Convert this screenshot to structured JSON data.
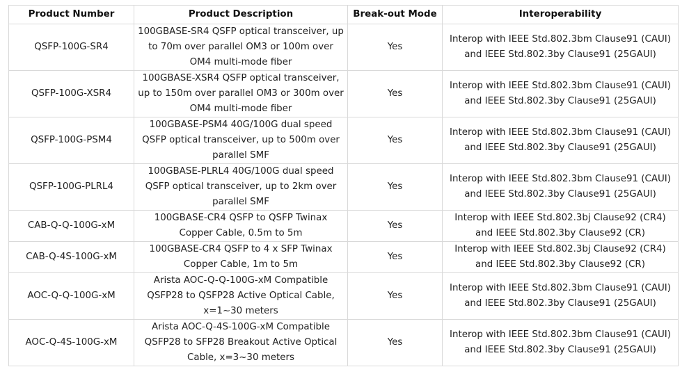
{
  "headers": [
    "Product Number",
    "Product Description",
    "Break-out Mode",
    "Interoperability"
  ],
  "rows": [
    {
      "number": "QSFP-100G-SR4",
      "description": "100GBASE-SR4 QSFP optical transceiver, up to 70m over parallel OM3 or 100m over OM4 multi-mode fiber",
      "breakout": "Yes",
      "interop": "Interop with IEEE Std.802.3bm Clause91 (CAUI) and IEEE Std.802.3by Clause91 (25GAUI)"
    },
    {
      "number": "QSFP-100G-XSR4",
      "description": "100GBASE-XSR4 QSFP optical transceiver, up to 150m over parallel OM3 or 300m over OM4 multi-mode fiber",
      "breakout": "Yes",
      "interop": "Interop with IEEE Std.802.3bm Clause91 (CAUI) and IEEE Std.802.3by Clause91 (25GAUI)"
    },
    {
      "number": "QSFP-100G-PSM4",
      "description": "100GBASE-PSM4 40G/100G dual speed QSFP optical transceiver, up to 500m over parallel SMF",
      "breakout": "Yes",
      "interop": "Interop with IEEE Std.802.3bm Clause91 (CAUI) and IEEE Std.802.3by Clause91 (25GAUI)"
    },
    {
      "number": "QSFP-100G-PLRL4",
      "description": "100GBASE-PLRL4 40G/100G dual speed QSFP optical transceiver, up to 2km over parallel SMF",
      "breakout": "Yes",
      "interop": "Interop with IEEE Std.802.3bm Clause91 (CAUI) and IEEE Std.802.3by Clause91 (25GAUI)"
    },
    {
      "number": "CAB-Q-Q-100G-xM",
      "description": "100GBASE-CR4 QSFP to QSFP Twinax Copper Cable, 0.5m to 5m",
      "breakout": "Yes",
      "interop": "Interop with IEEE Std.802.3bj Clause92 (CR4) and IEEE Std.802.3by Clause92 (CR)"
    },
    {
      "number": "CAB-Q-4S-100G-xM",
      "description": "100GBASE-CR4 QSFP to 4 x SFP Twinax Copper Cable, 1m to 5m",
      "breakout": "Yes",
      "interop": "Interop with IEEE Std.802.3bj Clause92 (CR4) and IEEE Std.802.3by Clause92 (CR)"
    },
    {
      "number": "AOC-Q-Q-100G-xM",
      "description": "Arista AOC-Q-Q-100G-xM Compatible QSFP28 to QSFP28 Active Optical Cable, x=1~30 meters",
      "breakout": "Yes",
      "interop": "Interop with IEEE Std.802.3bm Clause91 (CAUI) and IEEE Std.802.3by Clause91 (25GAUI)"
    },
    {
      "number": "AOC-Q-4S-100G-xM",
      "description": "Arista AOC-Q-4S-100G-xM Compatible QSFP28 to SFP28 Breakout Active Optical Cable, x=3~30 meters",
      "breakout": "Yes",
      "interop": "Interop with IEEE Std.802.3bm Clause91 (CAUI) and IEEE Std.802.3by Clause91 (25GAUI)"
    }
  ]
}
